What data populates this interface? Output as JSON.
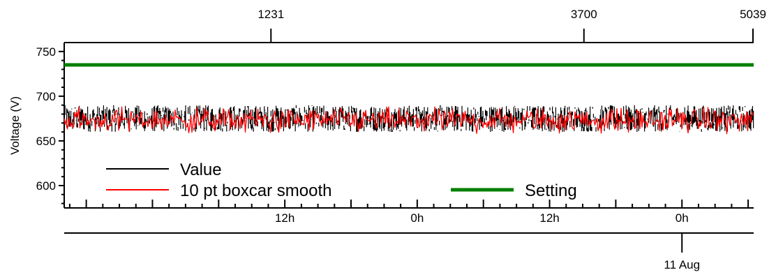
{
  "chart_data": {
    "type": "line",
    "ylabel": "Voltage (V)",
    "ylim": [
      575,
      760
    ],
    "yticks": [
      600,
      650,
      700,
      750
    ],
    "ytick_labels": [
      "600",
      "650",
      "700",
      "750"
    ],
    "top_axis": {
      "ticks": [
        1231,
        3700,
        5039
      ],
      "labels": [
        "1231",
        "3700",
        "5039"
      ],
      "range": [
        -400,
        5039
      ]
    },
    "time_axis": {
      "range_hours": [
        -64,
        61
      ],
      "major_ticks_hours": [
        -48,
        -24,
        0,
        24,
        48
      ],
      "labels": [
        "12h",
        "0h",
        "12h",
        "0h"
      ],
      "label_hours": [
        -24,
        0,
        24,
        48
      ]
    },
    "date_axis": {
      "label": "11 Aug",
      "label_hour": 48
    },
    "series": [
      {
        "name": "Value",
        "color": "#000000",
        "style": "noisy band",
        "mean": 675,
        "range": [
          660,
          690
        ]
      },
      {
        "name": "10 pt boxcar smooth",
        "color": "#ff0000",
        "style": "noisy band",
        "mean": 673,
        "range": [
          658,
          688
        ]
      },
      {
        "name": "Setting",
        "color": "#008000",
        "style": "flat",
        "value": 735
      }
    ],
    "legend": {
      "placement": "bottom-left",
      "entries": [
        "Value",
        "10 pt boxcar smooth",
        "Setting"
      ]
    }
  }
}
